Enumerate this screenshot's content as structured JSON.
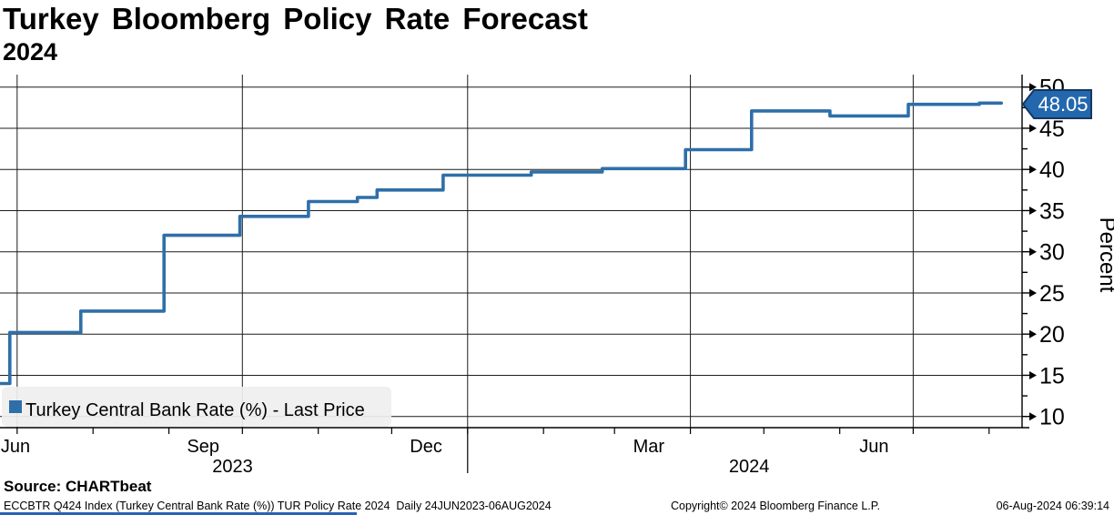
{
  "header": {
    "title": "Turkey Bloomberg Policy Rate Forecast",
    "subtitle": "2024"
  },
  "legend": {
    "label": "Turkey Central Bank Rate (%) - Last Price",
    "swatch_color": "#2E6FA8",
    "background_color": "#EFEFEF",
    "position": "bottom-left"
  },
  "last_price_tag": {
    "value": "48.05",
    "fill": "#2368AE",
    "border": "#17375E",
    "text_color": "#FFFFFF"
  },
  "source": {
    "label": "Source: CHARTbeat"
  },
  "footer": {
    "left": "ECCBTR Q424 Index (Turkey Central Bank Rate (%)) TUR Policy Rate 2024  Daily 24JUN2023-06AUG2024",
    "center": "Copyright© 2024 Bloomberg Finance L.P.",
    "right": "06-Aug-2024 06:39:14"
  },
  "chart_data": {
    "type": "line",
    "line_style": "step-after",
    "title": "Turkey Bloomberg Policy Rate Forecast 2024",
    "ylabel": "Percent",
    "ylim": [
      10,
      50
    ],
    "y_major_step": 5,
    "y_minor_step": 2.5,
    "y_ticks": [
      10,
      15,
      20,
      25,
      30,
      35,
      40,
      45,
      50
    ],
    "grid": true,
    "x_range": [
      "2023-06-24",
      "2024-08-06"
    ],
    "total_days": 409,
    "x_axis": {
      "month_tick_days": [
        7,
        38,
        69,
        99,
        130,
        160,
        191,
        222,
        251,
        282,
        312,
        343,
        373,
        404
      ],
      "quarter_grid_days": [
        7,
        99,
        191,
        282,
        373
      ],
      "month_labels": [
        {
          "label": "Jun",
          "day": -9
        },
        {
          "label": "Sep",
          "day": 83
        },
        {
          "label": "Dec",
          "day": 174
        },
        {
          "label": "Mar",
          "day": 265
        },
        {
          "label": "Jun",
          "day": 357
        }
      ],
      "year_labels": [
        {
          "label": "2023",
          "day": 95
        },
        {
          "label": "2024",
          "day": 306
        }
      ],
      "year_divider_day": 191
    },
    "series": [
      {
        "name": "Turkey Central Bank Rate (%) - Last Price",
        "color": "#2E6FA8",
        "last_value": 48.05,
        "points": [
          {
            "date": "2023-06-24",
            "day": 0,
            "value": 14.0
          },
          {
            "date": "2023-06-28",
            "day": 4,
            "value": 20.2
          },
          {
            "date": "2023-07-27",
            "day": 33,
            "value": 22.8
          },
          {
            "date": "2023-08-30",
            "day": 67,
            "value": 32.0
          },
          {
            "date": "2023-09-30",
            "day": 98,
            "value": 34.3
          },
          {
            "date": "2023-10-28",
            "day": 126,
            "value": 36.1
          },
          {
            "date": "2023-11-17",
            "day": 146,
            "value": 36.6
          },
          {
            "date": "2023-11-25",
            "day": 154,
            "value": 37.5
          },
          {
            "date": "2023-12-22",
            "day": 181,
            "value": 39.3
          },
          {
            "date": "2024-01-27",
            "day": 217,
            "value": 39.7
          },
          {
            "date": "2024-02-25",
            "day": 246,
            "value": 40.1
          },
          {
            "date": "2024-03-30",
            "day": 280,
            "value": 42.4
          },
          {
            "date": "2024-04-26",
            "day": 307,
            "value": 47.1
          },
          {
            "date": "2024-05-28",
            "day": 339,
            "value": 46.5
          },
          {
            "date": "2024-06-29",
            "day": 371,
            "value": 47.9
          },
          {
            "date": "2024-07-28",
            "day": 400,
            "value": 48.05
          },
          {
            "date": "2024-08-06",
            "day": 409,
            "value": 48.05
          }
        ]
      }
    ]
  }
}
